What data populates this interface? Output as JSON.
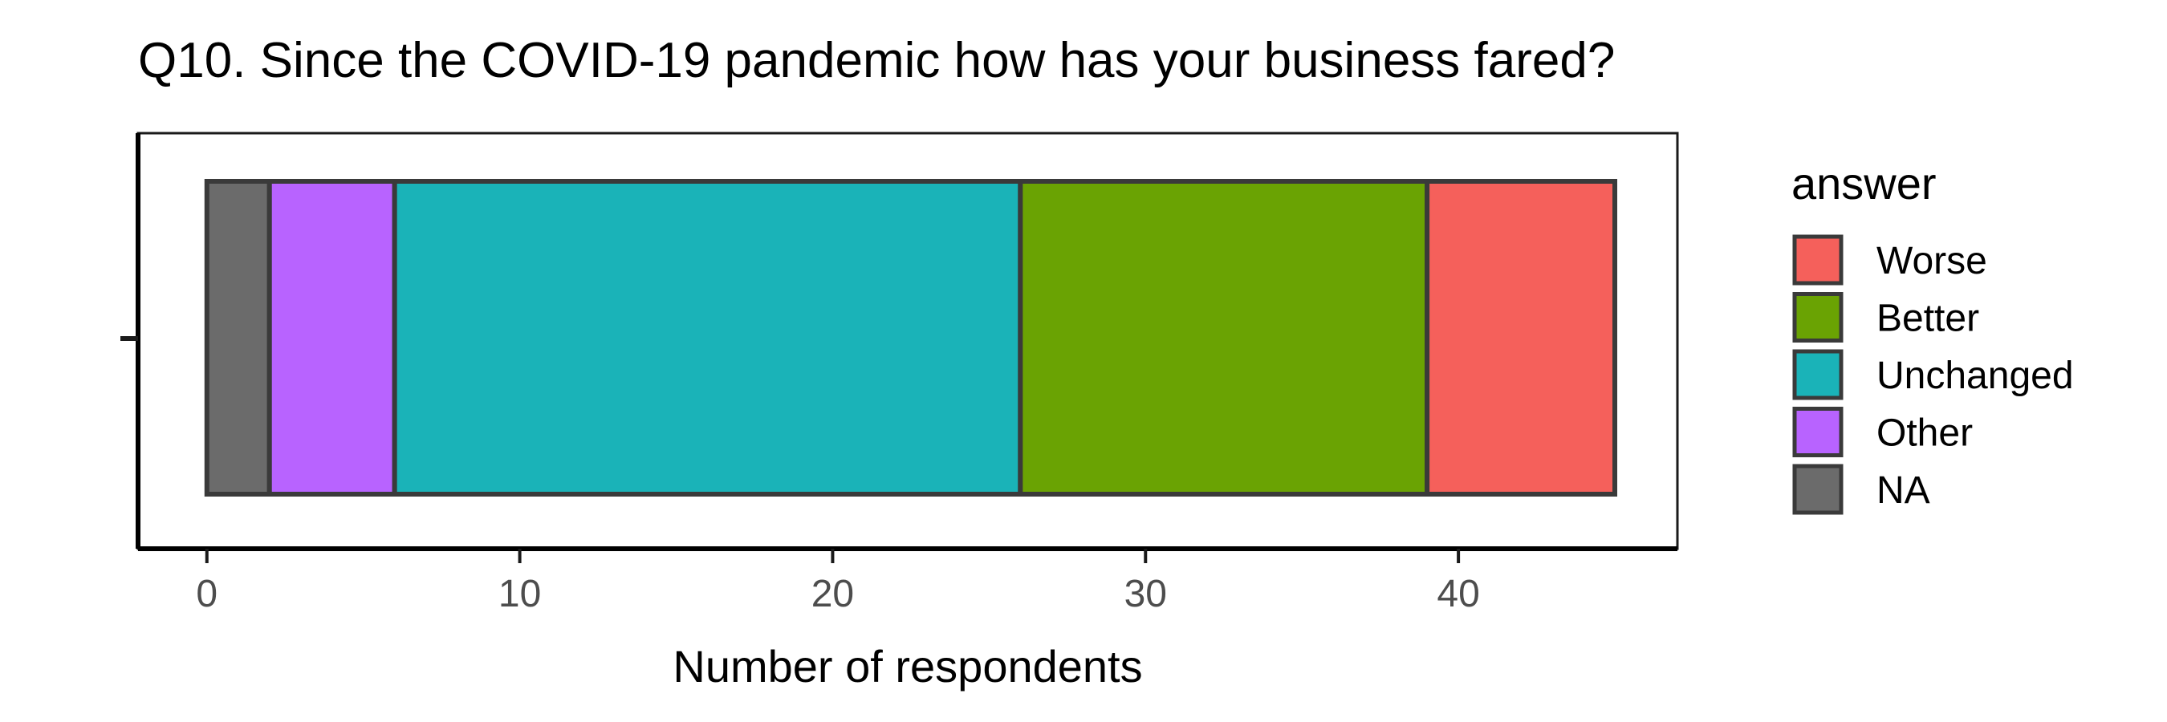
{
  "chart_data": {
    "type": "bar",
    "orientation": "horizontal",
    "stacked": true,
    "title": "Q10. Since the COVID-19 pandemic how has your business fared?",
    "xlabel": "Number of respondents",
    "ylabel": "",
    "xlim": [
      -2.2,
      47
    ],
    "x_ticks": [
      0,
      10,
      20,
      30,
      40
    ],
    "grid": false,
    "legend": {
      "title": "answer",
      "position": "right"
    },
    "series": [
      {
        "name": "NA",
        "value": 2,
        "color": "#6b6b6b"
      },
      {
        "name": "Other",
        "value": 4,
        "color": "#b863ff"
      },
      {
        "name": "Unchanged",
        "value": 20,
        "color": "#1ab3b8"
      },
      {
        "name": "Better",
        "value": 13,
        "color": "#6aa303"
      },
      {
        "name": "Worse",
        "value": 6,
        "color": "#f5605b"
      }
    ],
    "legend_order": [
      "Worse",
      "Better",
      "Unchanged",
      "Other",
      "NA"
    ],
    "outline_color": "#3a3a3a"
  }
}
